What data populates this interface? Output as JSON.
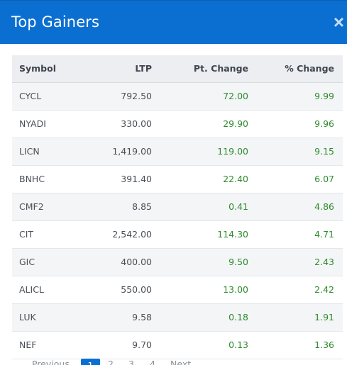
{
  "modal": {
    "title": "Top Gainers",
    "close_symbol": "×"
  },
  "table": {
    "columns": [
      "Symbol",
      "LTP",
      "Pt. Change",
      "% Change"
    ],
    "rows": [
      [
        "CYCL",
        "792.50",
        "72.00",
        "9.99"
      ],
      [
        "NYADI",
        "330.00",
        "29.90",
        "9.96"
      ],
      [
        "LICN",
        "1,419.00",
        "119.00",
        "9.15"
      ],
      [
        "BNHC",
        "391.40",
        "22.40",
        "6.07"
      ],
      [
        "CMF2",
        "8.85",
        "0.41",
        "4.86"
      ],
      [
        "CIT",
        "2,542.00",
        "114.30",
        "4.71"
      ],
      [
        "GIC",
        "400.00",
        "9.50",
        "2.43"
      ],
      [
        "ALICL",
        "550.00",
        "13.00",
        "2.42"
      ],
      [
        "LUK",
        "9.58",
        "0.18",
        "1.91"
      ],
      [
        "NEF",
        "9.70",
        "0.13",
        "1.36"
      ]
    ]
  },
  "pagination": {
    "previous": "Previous",
    "pages": [
      "1",
      "2",
      "3",
      "4"
    ],
    "active": "1",
    "next": "Next"
  },
  "colors": {
    "header_bg": "#0b6fd1",
    "positive": "#2e8b2e"
  }
}
